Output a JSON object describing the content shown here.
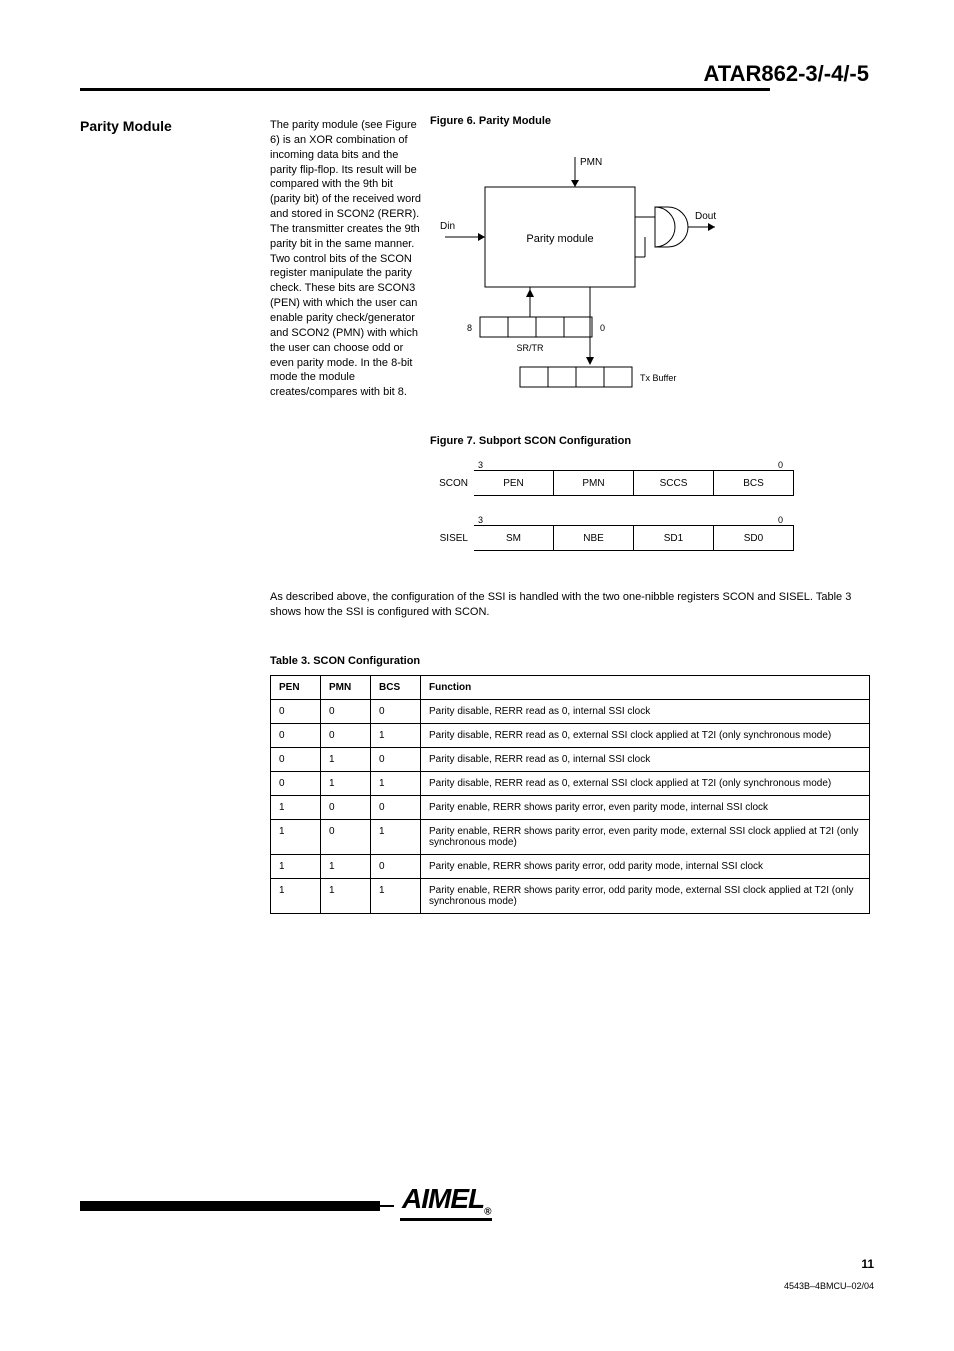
{
  "page": {
    "side_head": "ATAR862-3/-4/-5",
    "number": "11",
    "doc_code": "4543B–4BMCU–02/04"
  },
  "section": {
    "title": "Parity Module",
    "body": "The parity module (see Figure 6) is an XOR combination of incoming data bits and the parity flip-flop. Its result will be compared with the 9th bit (parity bit) of the received word and stored in SCON2 (RERR). The transmitter creates the 9th parity bit in the same manner. Two control bits of the SCON register manipulate the parity check. These bits are SCON3 (PEN) with which the user can enable parity check/generator and SCON2 (PMN) with which the user can choose odd or even parity mode. In the 8-bit mode the module creates/compares with bit 8.",
    "fig6_caption": "Figure 6.  Parity Module",
    "fig7_caption": "Figure 7.  Subport SCON Configuration",
    "pre_table_txt": "As described above, the configuration of the SSI is handled with the two one-nibble registers SCON and SISEL. Table 3 shows how the SSI is configured with SCON.",
    "tbl3_caption": "Table 3.  SCON Configuration"
  },
  "fig6": {
    "block_label": "Parity module",
    "in_left": "Din",
    "in_top": "PMN",
    "out_right": "Dout",
    "bits_top": [
      "8",
      "SR/TR",
      "0"
    ],
    "arrow_up_label": "",
    "bits_bot": [
      "",
      "",
      "",
      ""
    ],
    "bits_bot_label_right": "Tx Buffer"
  },
  "fig7": {
    "row1_label": "SCON",
    "row1_bits": [
      "PEN",
      "PMN",
      "SCCS",
      "BCS"
    ],
    "row2_label": "SISEL",
    "row2_bits": [
      "SM",
      "NBE",
      "SD1",
      "SD0"
    ]
  },
  "table3": {
    "columns": [
      "PEN",
      "PMN",
      "BCS",
      "Function"
    ],
    "rows": [
      [
        "0",
        "0",
        "0",
        "Parity disable, RERR read as 0, internal SSI clock"
      ],
      [
        "0",
        "0",
        "1",
        "Parity disable, RERR read as 0, external SSI clock applied at T2I (only synchronous mode)"
      ],
      [
        "0",
        "1",
        "0",
        "Parity disable, RERR read as 0, internal SSI clock"
      ],
      [
        "0",
        "1",
        "1",
        "Parity disable, RERR read as 0, external SSI clock applied at T2I (only synchronous mode)"
      ],
      [
        "1",
        "0",
        "0",
        "Parity enable, RERR shows parity error, even parity mode, internal SSI clock"
      ],
      [
        "1",
        "0",
        "1",
        "Parity enable, RERR shows parity error, even parity mode, external SSI clock applied at T2I (only synchronous mode)"
      ],
      [
        "1",
        "1",
        "0",
        "Parity enable, RERR shows parity error, odd parity mode, internal SSI clock"
      ],
      [
        "1",
        "1",
        "1",
        "Parity enable, RERR shows parity error, odd parity mode, external SSI clock applied at T2I (only synchronous mode)"
      ]
    ]
  }
}
